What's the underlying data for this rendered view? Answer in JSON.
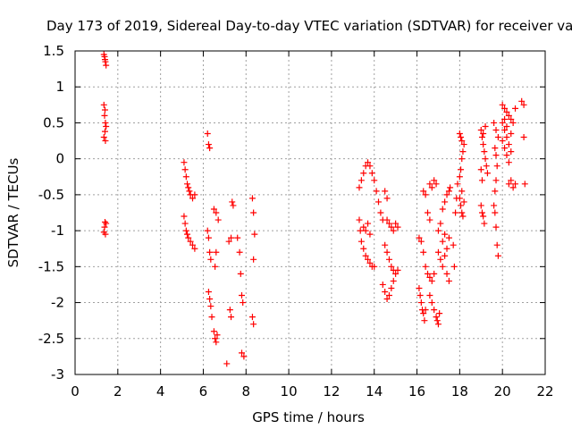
{
  "chart_data": {
    "type": "scatter",
    "title": "Day 173 of 2019, Sidereal Day-to-day VTEC variation (SDTVAR) for receiver vaa2",
    "xlabel": "GPS time / hours",
    "ylabel": "SDTVAR / TECUs",
    "xlim": [
      0,
      22
    ],
    "ylim": [
      -3,
      1.5
    ],
    "xticks": [
      0,
      2,
      4,
      6,
      8,
      10,
      12,
      14,
      16,
      18,
      20,
      22
    ],
    "xtick_labels": [
      "0",
      "2",
      "4",
      "6",
      "8",
      "10",
      "12",
      "14",
      "16",
      "18",
      "20",
      "22"
    ],
    "yticks": [
      -3,
      -2.5,
      -2,
      -1.5,
      -1,
      -0.5,
      0,
      0.5,
      1,
      1.5
    ],
    "ytick_labels": [
      "-3",
      "-2.5",
      "-2",
      "-1.5",
      "-1",
      "-0.5",
      "0",
      "0.5",
      "1",
      "1.5"
    ],
    "grid": true,
    "marker": "+",
    "color": "#ff0000",
    "series": [
      {
        "name": "SDTVAR",
        "points": [
          [
            1.35,
            1.45
          ],
          [
            1.4,
            1.38
          ],
          [
            1.45,
            1.3
          ],
          [
            1.42,
            1.35
          ],
          [
            1.38,
            1.42
          ],
          [
            1.35,
            0.75
          ],
          [
            1.4,
            0.68
          ],
          [
            1.38,
            0.6
          ],
          [
            1.42,
            0.5
          ],
          [
            1.45,
            0.45
          ],
          [
            1.4,
            0.38
          ],
          [
            1.35,
            0.3
          ],
          [
            1.42,
            0.25
          ],
          [
            1.4,
            -0.88
          ],
          [
            1.45,
            -0.9
          ],
          [
            1.38,
            -0.95
          ],
          [
            1.35,
            -1.02
          ],
          [
            1.42,
            -1.05
          ],
          [
            5.1,
            -0.05
          ],
          [
            5.15,
            -0.15
          ],
          [
            5.2,
            -0.25
          ],
          [
            5.25,
            -0.35
          ],
          [
            5.3,
            -0.4
          ],
          [
            5.35,
            -0.45
          ],
          [
            5.4,
            -0.5
          ],
          [
            5.5,
            -0.55
          ],
          [
            5.6,
            -0.5
          ],
          [
            5.1,
            -0.8
          ],
          [
            5.15,
            -0.9
          ],
          [
            5.2,
            -1.0
          ],
          [
            5.25,
            -1.05
          ],
          [
            5.3,
            -1.1
          ],
          [
            5.4,
            -1.15
          ],
          [
            5.5,
            -1.2
          ],
          [
            5.6,
            -1.25
          ],
          [
            6.2,
            0.35
          ],
          [
            6.25,
            0.2
          ],
          [
            6.3,
            0.15
          ],
          [
            6.2,
            -1.0
          ],
          [
            6.25,
            -1.1
          ],
          [
            6.3,
            -1.3
          ],
          [
            6.35,
            -1.4
          ],
          [
            6.25,
            -1.85
          ],
          [
            6.3,
            -1.95
          ],
          [
            6.35,
            -2.05
          ],
          [
            6.4,
            -2.2
          ],
          [
            6.5,
            -2.4
          ],
          [
            6.55,
            -2.5
          ],
          [
            6.6,
            -2.55
          ],
          [
            6.65,
            -2.45
          ],
          [
            6.55,
            -1.5
          ],
          [
            6.6,
            -1.3
          ],
          [
            6.5,
            -0.7
          ],
          [
            6.6,
            -0.75
          ],
          [
            6.7,
            -0.85
          ],
          [
            7.1,
            -2.85
          ],
          [
            7.2,
            -1.15
          ],
          [
            7.3,
            -1.1
          ],
          [
            7.35,
            -0.6
          ],
          [
            7.4,
            -0.65
          ],
          [
            7.25,
            -2.1
          ],
          [
            7.3,
            -2.2
          ],
          [
            7.6,
            -1.1
          ],
          [
            7.7,
            -1.3
          ],
          [
            7.75,
            -1.6
          ],
          [
            7.8,
            -1.9
          ],
          [
            7.85,
            -2.0
          ],
          [
            7.8,
            -2.7
          ],
          [
            7.9,
            -2.75
          ],
          [
            8.3,
            -0.55
          ],
          [
            8.35,
            -0.75
          ],
          [
            8.4,
            -1.05
          ],
          [
            8.35,
            -1.4
          ],
          [
            8.3,
            -2.2
          ],
          [
            8.35,
            -2.3
          ],
          [
            13.3,
            -0.4
          ],
          [
            13.4,
            -0.3
          ],
          [
            13.5,
            -0.2
          ],
          [
            13.6,
            -0.1
          ],
          [
            13.7,
            -0.05
          ],
          [
            13.8,
            -0.1
          ],
          [
            13.9,
            -0.2
          ],
          [
            14.0,
            -0.3
          ],
          [
            14.1,
            -0.45
          ],
          [
            14.2,
            -0.6
          ],
          [
            14.3,
            -0.75
          ],
          [
            14.4,
            -0.85
          ],
          [
            13.3,
            -0.85
          ],
          [
            13.35,
            -1.0
          ],
          [
            13.4,
            -1.15
          ],
          [
            13.5,
            -1.25
          ],
          [
            13.6,
            -1.35
          ],
          [
            13.7,
            -1.4
          ],
          [
            13.8,
            -1.45
          ],
          [
            13.9,
            -1.5
          ],
          [
            14.0,
            -1.5
          ],
          [
            13.5,
            -0.95
          ],
          [
            13.6,
            -1.0
          ],
          [
            13.7,
            -0.9
          ],
          [
            13.8,
            -1.05
          ],
          [
            14.5,
            -0.45
          ],
          [
            14.6,
            -0.55
          ],
          [
            14.6,
            -0.85
          ],
          [
            14.7,
            -0.9
          ],
          [
            14.8,
            -0.95
          ],
          [
            14.9,
            -1.0
          ],
          [
            15.0,
            -0.9
          ],
          [
            15.1,
            -0.95
          ],
          [
            14.5,
            -1.2
          ],
          [
            14.6,
            -1.3
          ],
          [
            14.7,
            -1.4
          ],
          [
            14.8,
            -1.5
          ],
          [
            14.9,
            -1.55
          ],
          [
            15.0,
            -1.6
          ],
          [
            15.1,
            -1.55
          ],
          [
            14.4,
            -1.75
          ],
          [
            14.5,
            -1.85
          ],
          [
            14.6,
            -1.95
          ],
          [
            14.7,
            -1.9
          ],
          [
            14.8,
            -1.8
          ],
          [
            14.9,
            -1.7
          ],
          [
            16.1,
            -1.1
          ],
          [
            16.2,
            -1.15
          ],
          [
            16.3,
            -1.3
          ],
          [
            16.4,
            -1.5
          ],
          [
            16.5,
            -1.6
          ],
          [
            16.6,
            -1.65
          ],
          [
            16.7,
            -1.7
          ],
          [
            16.8,
            -1.6
          ],
          [
            16.1,
            -1.8
          ],
          [
            16.15,
            -1.9
          ],
          [
            16.2,
            -2.0
          ],
          [
            16.25,
            -2.1
          ],
          [
            16.3,
            -2.15
          ],
          [
            16.35,
            -2.25
          ],
          [
            16.4,
            -2.1
          ],
          [
            16.3,
            -0.45
          ],
          [
            16.4,
            -0.5
          ],
          [
            16.6,
            -0.35
          ],
          [
            16.7,
            -0.4
          ],
          [
            16.8,
            -0.3
          ],
          [
            16.9,
            -0.35
          ],
          [
            16.5,
            -0.75
          ],
          [
            16.6,
            -0.85
          ],
          [
            16.6,
            -1.9
          ],
          [
            16.7,
            -2.0
          ],
          [
            16.8,
            -2.1
          ],
          [
            16.9,
            -2.2
          ],
          [
            17.0,
            -2.3
          ],
          [
            16.95,
            -2.25
          ],
          [
            17.05,
            -2.15
          ],
          [
            17.0,
            -1.3
          ],
          [
            17.1,
            -1.4
          ],
          [
            17.2,
            -1.5
          ],
          [
            17.3,
            -1.35
          ],
          [
            17.4,
            -1.25
          ],
          [
            17.5,
            -1.1
          ],
          [
            17.0,
            -1.0
          ],
          [
            17.1,
            -0.9
          ],
          [
            17.2,
            -0.7
          ],
          [
            17.3,
            -0.6
          ],
          [
            17.4,
            -0.5
          ],
          [
            17.5,
            -0.45
          ],
          [
            17.55,
            -0.4
          ],
          [
            17.2,
            -1.15
          ],
          [
            17.3,
            -1.05
          ],
          [
            17.4,
            -1.6
          ],
          [
            17.5,
            -1.7
          ],
          [
            17.7,
            -1.2
          ],
          [
            17.75,
            -1.5
          ],
          [
            17.8,
            -0.75
          ],
          [
            17.85,
            -0.55
          ],
          [
            17.9,
            -0.35
          ],
          [
            18.0,
            -0.25
          ],
          [
            18.05,
            -0.15
          ],
          [
            18.1,
            0.0
          ],
          [
            18.15,
            0.1
          ],
          [
            18.2,
            0.2
          ],
          [
            18.0,
            0.35
          ],
          [
            18.05,
            0.3
          ],
          [
            18.1,
            0.25
          ],
          [
            18.0,
            -0.55
          ],
          [
            18.05,
            -0.65
          ],
          [
            18.1,
            -0.75
          ],
          [
            18.15,
            -0.8
          ],
          [
            18.2,
            -0.6
          ],
          [
            18.1,
            -0.45
          ],
          [
            19.0,
            0.4
          ],
          [
            19.05,
            0.3
          ],
          [
            19.1,
            0.2
          ],
          [
            19.15,
            0.1
          ],
          [
            19.2,
            0.0
          ],
          [
            19.25,
            -0.1
          ],
          [
            19.3,
            -0.2
          ],
          [
            19.0,
            -0.15
          ],
          [
            19.05,
            -0.3
          ],
          [
            19.0,
            -0.65
          ],
          [
            19.05,
            -0.75
          ],
          [
            19.1,
            -0.8
          ],
          [
            19.15,
            -0.9
          ],
          [
            19.1,
            0.35
          ],
          [
            19.2,
            0.45
          ],
          [
            19.6,
            0.5
          ],
          [
            19.7,
            0.4
          ],
          [
            19.8,
            0.3
          ],
          [
            19.65,
            0.15
          ],
          [
            19.7,
            0.05
          ],
          [
            19.75,
            -0.1
          ],
          [
            19.7,
            -0.3
          ],
          [
            19.65,
            -0.45
          ],
          [
            19.6,
            -0.65
          ],
          [
            19.65,
            -0.75
          ],
          [
            19.7,
            -0.95
          ],
          [
            19.75,
            -1.2
          ],
          [
            19.8,
            -1.35
          ],
          [
            20.0,
            0.75
          ],
          [
            20.1,
            0.7
          ],
          [
            20.2,
            0.65
          ],
          [
            20.3,
            0.6
          ],
          [
            20.4,
            0.55
          ],
          [
            20.5,
            0.5
          ],
          [
            20.6,
            0.7
          ],
          [
            20.0,
            0.5
          ],
          [
            20.1,
            0.4
          ],
          [
            20.2,
            0.3
          ],
          [
            20.3,
            0.2
          ],
          [
            20.4,
            0.1
          ],
          [
            20.0,
            0.25
          ],
          [
            20.1,
            0.15
          ],
          [
            20.2,
            0.05
          ],
          [
            20.3,
            -0.05
          ],
          [
            20.1,
            0.55
          ],
          [
            20.2,
            0.45
          ],
          [
            20.4,
            0.35
          ],
          [
            20.3,
            -0.35
          ],
          [
            20.4,
            -0.3
          ],
          [
            20.5,
            -0.4
          ],
          [
            20.6,
            -0.35
          ],
          [
            20.9,
            0.8
          ],
          [
            21.0,
            0.75
          ],
          [
            21.0,
            0.3
          ],
          [
            21.05,
            -0.35
          ]
        ]
      }
    ]
  }
}
